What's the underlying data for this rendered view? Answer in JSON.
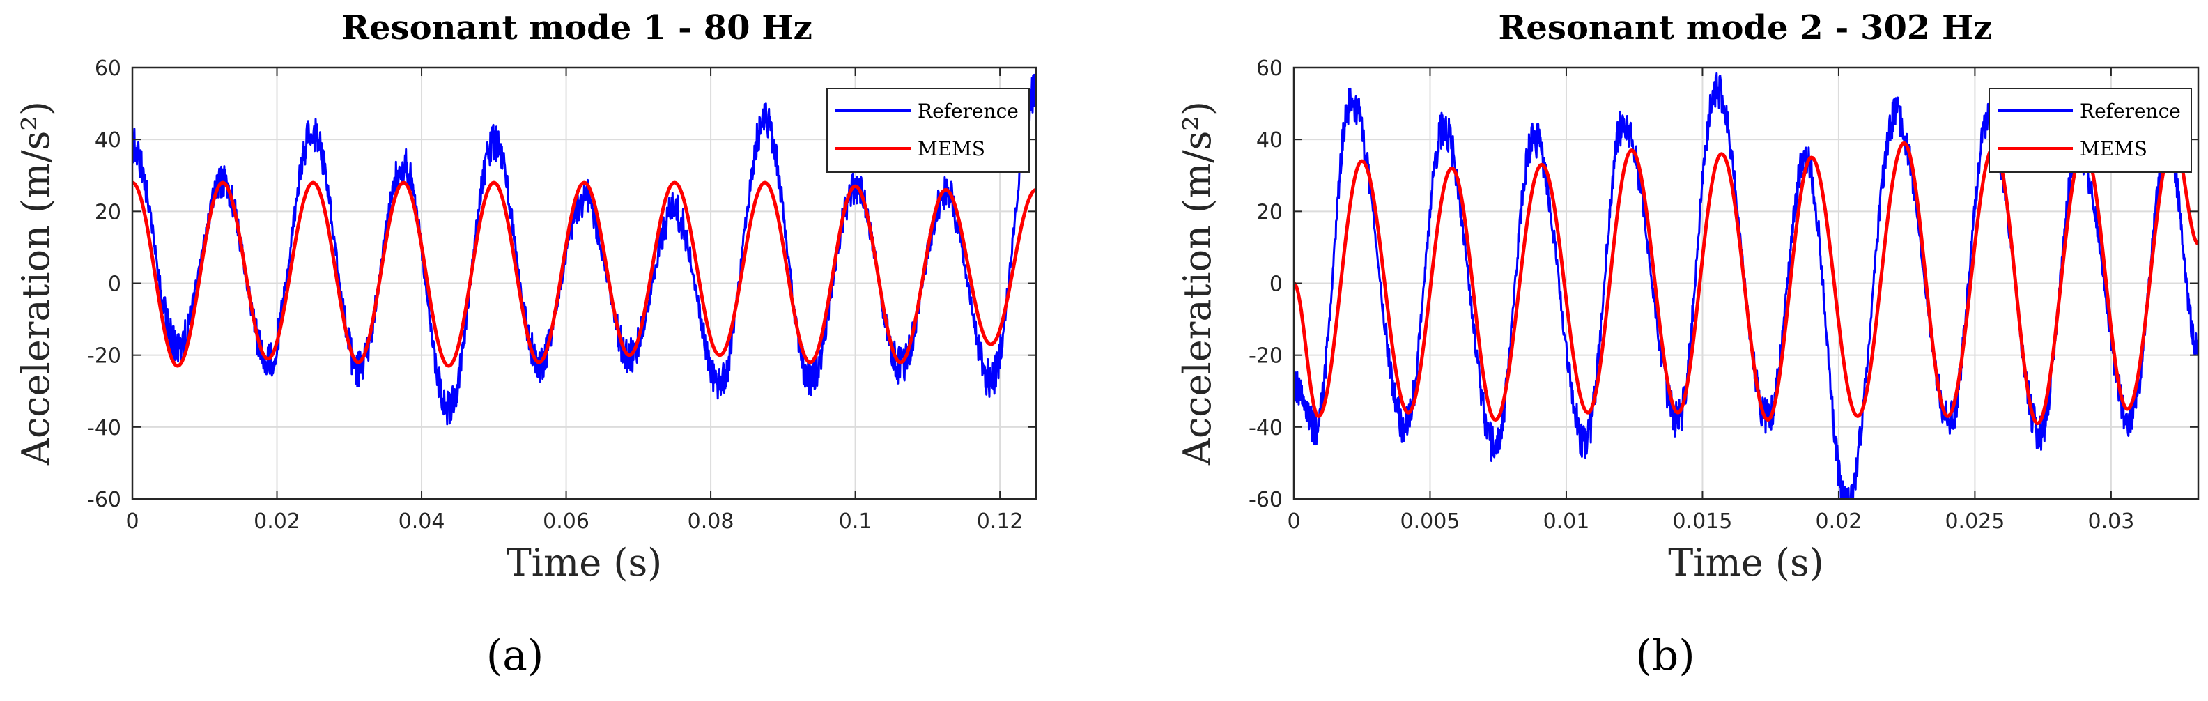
{
  "chart_data": [
    {
      "panel_label": "(a)",
      "type": "line",
      "title": "Resonant mode 1 - 80 Hz",
      "xlabel": "Time (s)",
      "ylabel": "Acceleration (m/s²)",
      "xlim": [
        0,
        0.125
      ],
      "ylim": [
        -60,
        60
      ],
      "xticks": [
        0,
        0.02,
        0.04,
        0.06,
        0.08,
        0.1,
        0.12
      ],
      "xtick_labels": [
        "0",
        "0.02",
        "0.04",
        "0.06",
        "0.08",
        "0.1",
        "0.12"
      ],
      "yticks": [
        -60,
        -40,
        -20,
        0,
        20,
        40,
        60
      ],
      "ytick_labels": [
        "-60",
        "-40",
        "-20",
        "0",
        "20",
        "40",
        "60"
      ],
      "grid": true,
      "legend_position": "top-right",
      "series": [
        {
          "name": "Reference",
          "color": "#0000ff",
          "x": [
            0,
            0.00625,
            0.0125,
            0.01875,
            0.025,
            0.03125,
            0.0375,
            0.04375,
            0.05,
            0.05625,
            0.0625,
            0.06875,
            0.075,
            0.08125,
            0.0875,
            0.09375,
            0.1,
            0.10625,
            0.1125,
            0.11875,
            0.125
          ],
          "values": [
            38,
            -18,
            28,
            -22,
            42,
            -24,
            33,
            -35,
            39,
            -22,
            24,
            -20,
            20,
            -28,
            45,
            -27,
            27,
            -23,
            25,
            -27,
            54
          ]
        },
        {
          "name": "MEMS",
          "color": "#ff0000",
          "x": [
            0,
            0.00625,
            0.0125,
            0.01875,
            0.025,
            0.03125,
            0.0375,
            0.04375,
            0.05,
            0.05625,
            0.0625,
            0.06875,
            0.075,
            0.08125,
            0.0875,
            0.09375,
            0.1,
            0.10625,
            0.1125,
            0.11875,
            0.125
          ],
          "values": [
            28,
            -23,
            28,
            -21,
            28,
            -22,
            28,
            -23,
            28,
            -22,
            28,
            -20,
            28,
            -20,
            28,
            -22,
            27,
            -22,
            26,
            -17,
            26
          ]
        }
      ]
    },
    {
      "panel_label": "(b)",
      "type": "line",
      "title": "Resonant mode 2 - 302 Hz",
      "xlabel": "Time (s)",
      "ylabel": "Acceleration (m/s²)",
      "xlim": [
        0,
        0.0332
      ],
      "ylim": [
        -60,
        60
      ],
      "xticks": [
        0,
        0.005,
        0.01,
        0.015,
        0.02,
        0.025,
        0.03
      ],
      "xtick_labels": [
        "0",
        "0.005",
        "0.01",
        "0.015",
        "0.02",
        "0.025",
        "0.03"
      ],
      "yticks": [
        -60,
        -40,
        -20,
        0,
        20,
        40,
        60
      ],
      "ytick_labels": [
        "-60",
        "-40",
        "-20",
        "0",
        "20",
        "40",
        "60"
      ],
      "grid": true,
      "legend_position": "top-right",
      "series": [
        {
          "name": "Reference",
          "color": "#0000ff",
          "x": [
            0,
            0.0008,
            0.0021,
            0.0041,
            0.0055,
            0.0074,
            0.0088,
            0.0107,
            0.0121,
            0.0141,
            0.0155,
            0.0174,
            0.0188,
            0.0203,
            0.0221,
            0.0241,
            0.0255,
            0.0274,
            0.0288,
            0.0307,
            0.0321,
            0.0332
          ],
          "values": [
            -28,
            -40,
            51,
            -40,
            43,
            -46,
            41,
            -44,
            45,
            -38,
            54,
            -38,
            35,
            -62,
            47,
            -38,
            45,
            -42,
            37,
            -38,
            39,
            -20
          ]
        },
        {
          "name": "MEMS",
          "color": "#ff0000",
          "x": [
            0,
            0.0009,
            0.0025,
            0.0042,
            0.0058,
            0.0074,
            0.0091,
            0.0108,
            0.0124,
            0.0141,
            0.0157,
            0.0174,
            0.019,
            0.0207,
            0.0224,
            0.024,
            0.0257,
            0.0273,
            0.029,
            0.0306,
            0.0323,
            0.0332
          ],
          "values": [
            0,
            -37,
            34,
            -36,
            32,
            -38,
            33,
            -36,
            37,
            -36,
            36,
            -38,
            35,
            -37,
            39,
            -37,
            38,
            -39,
            38,
            -35,
            40,
            11
          ]
        }
      ]
    }
  ]
}
